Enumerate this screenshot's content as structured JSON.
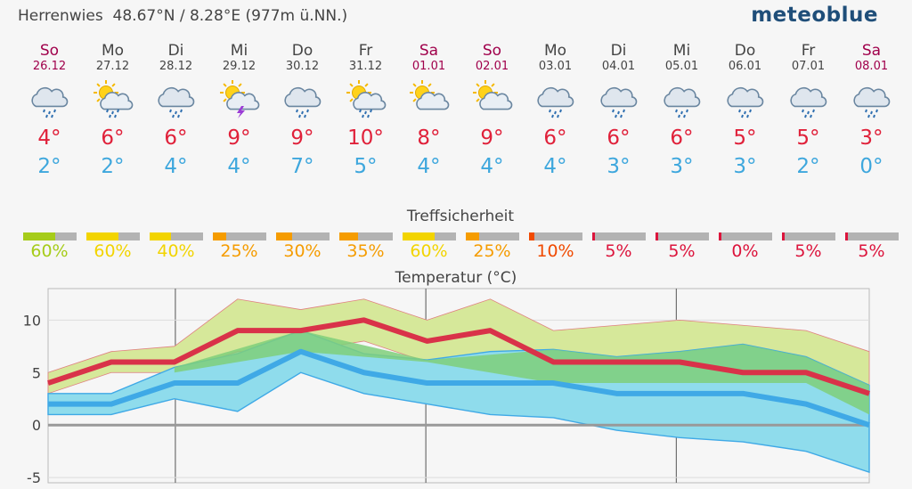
{
  "header": {
    "location": "Herrenwies",
    "coords": "48.67°N / 8.28°E (977m ü.NN.)",
    "logo": "meteoblue"
  },
  "days": [
    {
      "name": "So",
      "date": "26.12",
      "weekend": true,
      "icon": "rain-cloud-icon",
      "tmax": "4°",
      "tmin": "2°",
      "confidence": 60,
      "conf_label": "60%",
      "conf_color": "#a6cc1a"
    },
    {
      "name": "Mo",
      "date": "27.12",
      "weekend": false,
      "icon": "sun-cloud-rain-icon",
      "tmax": "6°",
      "tmin": "2°",
      "confidence": 60,
      "conf_label": "60%",
      "conf_color": "#f2d400"
    },
    {
      "name": "Di",
      "date": "28.12",
      "weekend": false,
      "icon": "rain-cloud-icon",
      "tmax": "6°",
      "tmin": "4°",
      "confidence": 40,
      "conf_label": "40%",
      "conf_color": "#f2d400"
    },
    {
      "name": "Mi",
      "date": "29.12",
      "weekend": false,
      "icon": "sun-thunder-icon",
      "tmax": "9°",
      "tmin": "4°",
      "confidence": 25,
      "conf_label": "25%",
      "conf_color": "#f59c00"
    },
    {
      "name": "Do",
      "date": "30.12",
      "weekend": false,
      "icon": "rain-cloud-icon",
      "tmax": "9°",
      "tmin": "7°",
      "confidence": 30,
      "conf_label": "30%",
      "conf_color": "#f59c00"
    },
    {
      "name": "Fr",
      "date": "31.12",
      "weekend": false,
      "icon": "sun-cloud-rain-icon",
      "tmax": "10°",
      "tmin": "5°",
      "confidence": 35,
      "conf_label": "35%",
      "conf_color": "#f59c00"
    },
    {
      "name": "Sa",
      "date": "01.01",
      "weekend": true,
      "icon": "sun-cloud-icon",
      "tmax": "8°",
      "tmin": "4°",
      "confidence": 60,
      "conf_label": "60%",
      "conf_color": "#f2d400"
    },
    {
      "name": "So",
      "date": "02.01",
      "weekend": true,
      "icon": "sun-cloud-icon",
      "tmax": "9°",
      "tmin": "4°",
      "confidence": 25,
      "conf_label": "25%",
      "conf_color": "#f59c00"
    },
    {
      "name": "Mo",
      "date": "03.01",
      "weekend": false,
      "icon": "rain-cloud-icon",
      "tmax": "6°",
      "tmin": "4°",
      "confidence": 10,
      "conf_label": "10%",
      "conf_color": "#f04a00"
    },
    {
      "name": "Di",
      "date": "04.01",
      "weekend": false,
      "icon": "rain-cloud-icon",
      "tmax": "6°",
      "tmin": "3°",
      "confidence": 5,
      "conf_label": "5%",
      "conf_color": "#dc143c"
    },
    {
      "name": "Mi",
      "date": "05.01",
      "weekend": false,
      "icon": "rain-cloud-icon",
      "tmax": "6°",
      "tmin": "3°",
      "confidence": 5,
      "conf_label": "5%",
      "conf_color": "#dc143c"
    },
    {
      "name": "Do",
      "date": "06.01",
      "weekend": false,
      "icon": "rain-cloud-icon",
      "tmax": "5°",
      "tmin": "3°",
      "confidence": 0,
      "conf_label": "0%",
      "conf_color": "#dc143c"
    },
    {
      "name": "Fr",
      "date": "07.01",
      "weekend": false,
      "icon": "rain-cloud-icon",
      "tmax": "5°",
      "tmin": "2°",
      "confidence": 5,
      "conf_label": "5%",
      "conf_color": "#dc143c"
    },
    {
      "name": "Sa",
      "date": "08.01",
      "weekend": true,
      "icon": "rain-cloud-icon",
      "tmax": "3°",
      "tmin": "0°",
      "confidence": 5,
      "conf_label": "5%",
      "conf_color": "#dc143c"
    }
  ],
  "sections": {
    "confidence_title": "Treffsicherheit",
    "temperature_title": "Temperatur (°C)"
  },
  "colors": {
    "max_line": "#d93249",
    "min_line": "#3fa9e6",
    "max_band": "#d6e89a",
    "min_band": "#8fdcec",
    "overlap_band": "#7fcf7a",
    "zero_line": "#999999"
  },
  "chart_data": {
    "type": "line",
    "title": "Temperatur (°C)",
    "xlabel": "",
    "ylabel": "",
    "x": [
      "26.12",
      "27.12",
      "28.12",
      "29.12",
      "30.12",
      "31.12",
      "01.01",
      "02.01",
      "03.01",
      "04.01",
      "05.01",
      "06.01",
      "07.01",
      "08.01"
    ],
    "ylim": [
      -5.5,
      13
    ],
    "yticks": [
      -5,
      0,
      5,
      10
    ],
    "grid": true,
    "series": [
      {
        "role": "max",
        "values": [
          4,
          6,
          6,
          9,
          9,
          10,
          8,
          9,
          6,
          6,
          6,
          5,
          5,
          3
        ]
      },
      {
        "role": "min",
        "values": [
          2,
          2,
          4,
          4,
          7,
          5,
          4,
          4,
          4,
          3,
          3,
          3,
          2,
          0
        ]
      }
    ],
    "bands": [
      {
        "role": "max-range",
        "low": [
          3,
          5,
          5,
          7,
          7,
          8,
          6,
          7,
          4,
          4,
          4,
          4,
          4,
          1
        ],
        "high": [
          5,
          7,
          7.5,
          12,
          11,
          12,
          10,
          12,
          9,
          9.5,
          10,
          9.5,
          9,
          7
        ]
      },
      {
        "role": "min-range",
        "low": [
          1,
          1,
          2.5,
          1.3,
          5,
          3,
          2,
          1,
          0.7,
          -0.5,
          -1.2,
          -1.6,
          -2.5,
          -4.5
        ],
        "high": [
          3,
          3,
          5.5,
          6.8,
          9,
          6.8,
          6.2,
          7,
          7.2,
          6.5,
          7,
          7.7,
          6.5,
          3.8
        ]
      }
    ]
  }
}
